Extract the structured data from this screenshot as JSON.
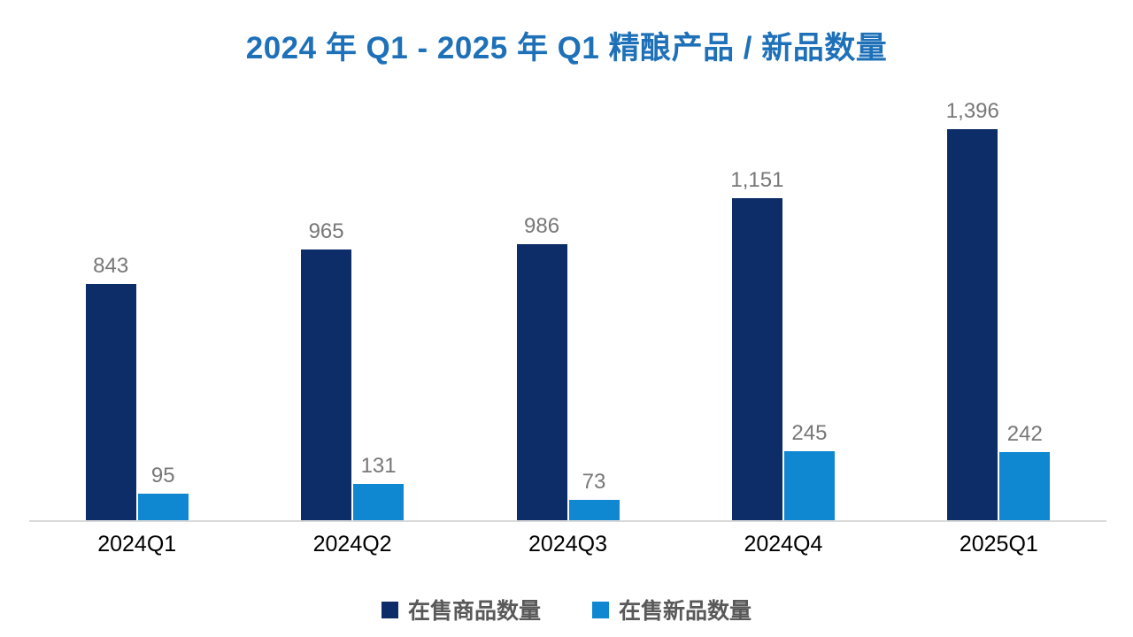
{
  "title": "2024 年 Q1 - 2025 年 Q1 精酿产品 / 新品数量",
  "colors": {
    "title": "#1E71B8",
    "series_products": "#0D2D69",
    "series_new_products": "#0F88D1",
    "value_label": "#777777",
    "axis_line": "#D9D9D9",
    "x_label": "#000000",
    "legend_text": "#595959"
  },
  "chart_data": {
    "type": "bar",
    "title": "2024 年 Q1 - 2025 年 Q1 精酿产品 / 新品数量",
    "categories": [
      "2024Q1",
      "2024Q2",
      "2024Q3",
      "2024Q4",
      "2025Q1"
    ],
    "series": [
      {
        "name": "在售商品数量",
        "color": "#0D2D69",
        "values": [
          843,
          965,
          986,
          1151,
          1396
        ],
        "labels": [
          "843",
          "965",
          "986",
          "1,151",
          "1,396"
        ]
      },
      {
        "name": "在售新品数量",
        "color": "#0F88D1",
        "values": [
          95,
          131,
          73,
          245,
          242
        ],
        "labels": [
          "95",
          "131",
          "73",
          "245",
          "242"
        ]
      }
    ],
    "xlabel": "",
    "ylabel": "",
    "ylim": [
      0,
      1478
    ],
    "grid": false,
    "y_axis_visible": false,
    "legend_position": "bottom"
  },
  "legend": {
    "items": [
      {
        "label": "在售商品数量",
        "color": "#0D2D69"
      },
      {
        "label": "在售新品数量",
        "color": "#0F88D1"
      }
    ]
  }
}
